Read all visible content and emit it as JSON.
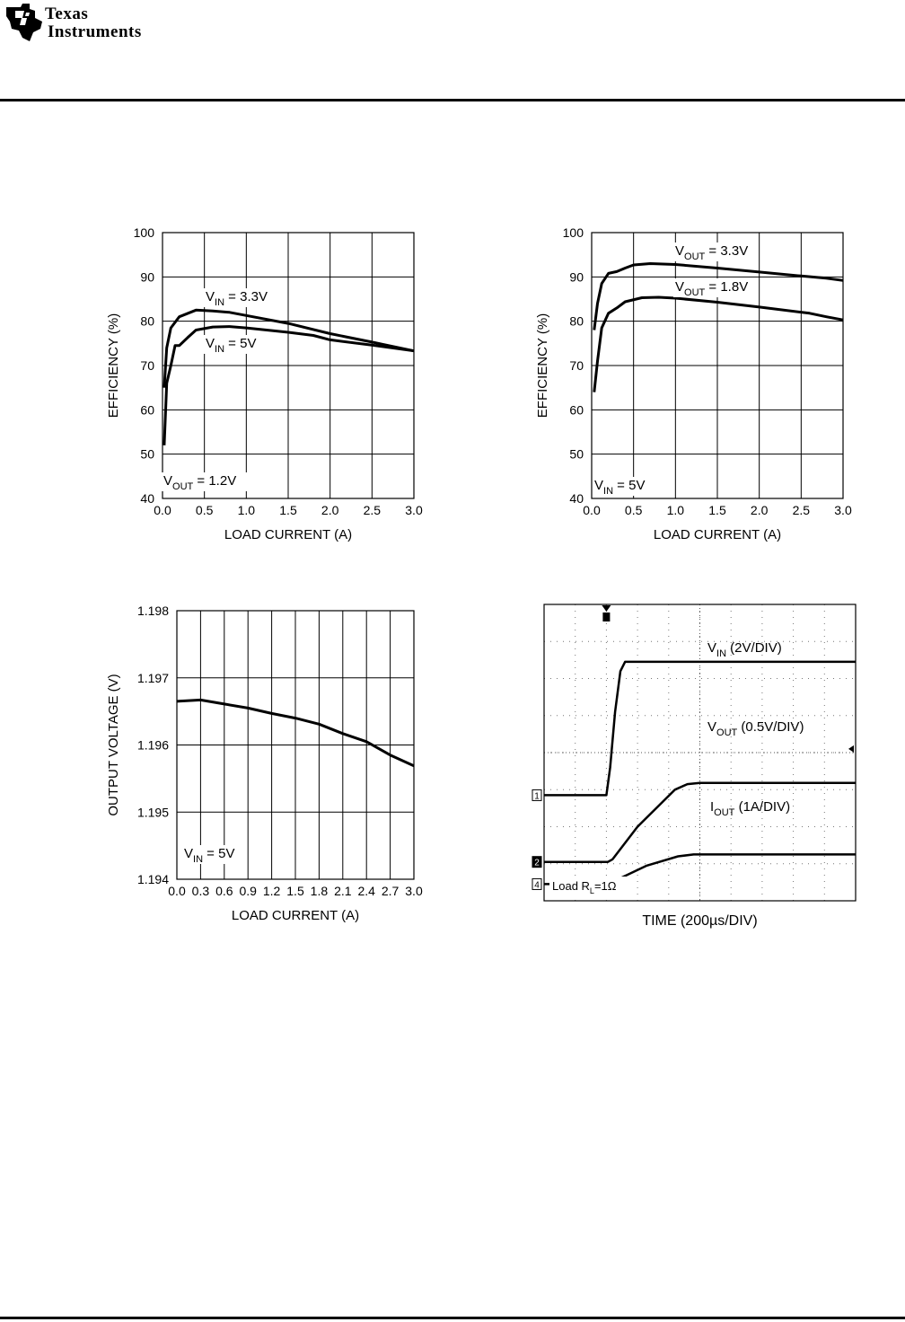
{
  "header": {
    "logo_line1": "Texas",
    "logo_line2": "Instruments"
  },
  "chart_data": [
    {
      "type": "line",
      "xlabel": "LOAD CURRENT (A)",
      "ylabel": "EFFICIENCY (%)",
      "xlim": [
        0,
        3
      ],
      "ylim": [
        40,
        100
      ],
      "xticks": [
        "0.0",
        "0.5",
        "1.0",
        "1.5",
        "2.0",
        "2.5",
        "3.0"
      ],
      "yticks": [
        "40",
        "50",
        "60",
        "70",
        "80",
        "90",
        "100"
      ],
      "grid": true,
      "annotations": [
        {
          "base": "V",
          "sub": "IN",
          "rest": " = 3.3V"
        },
        {
          "base": "V",
          "sub": "IN",
          "rest": " = 5V"
        },
        {
          "base": "V",
          "sub": "OUT",
          "rest": " = 1.2V"
        }
      ],
      "series": [
        {
          "name": "VIN = 3.3V",
          "x": [
            0.02,
            0.05,
            0.1,
            0.2,
            0.4,
            0.6,
            0.8,
            1.0,
            1.5,
            2.0,
            2.5,
            3.0
          ],
          "y": [
            65,
            74,
            78.5,
            81,
            82.5,
            82.3,
            82,
            81.3,
            79.5,
            77.2,
            75.3,
            73.3
          ]
        },
        {
          "name": "VIN = 5V",
          "x": [
            0.02,
            0.05,
            0.1,
            0.15,
            0.2,
            0.3,
            0.4,
            0.6,
            0.8,
            1.0,
            1.5,
            1.8,
            2.0,
            2.5,
            3.0
          ],
          "y": [
            52,
            66,
            70,
            74.5,
            74.5,
            76.3,
            78,
            78.7,
            78.8,
            78.5,
            77.5,
            76.8,
            75.8,
            74.6,
            73.3
          ]
        }
      ]
    },
    {
      "type": "line",
      "xlabel": "LOAD CURRENT (A)",
      "ylabel": "EFFICIENCY (%)",
      "xlim": [
        0,
        3
      ],
      "ylim": [
        40,
        100
      ],
      "xticks": [
        "0.0",
        "0.5",
        "1.0",
        "1.5",
        "2.0",
        "2.5",
        "3.0"
      ],
      "yticks": [
        "40",
        "50",
        "60",
        "70",
        "80",
        "90",
        "100"
      ],
      "grid": true,
      "annotations": [
        {
          "base": "V",
          "sub": "OUT",
          "rest": " = 3.3V"
        },
        {
          "base": "V",
          "sub": "OUT",
          "rest": " = 1.8V"
        },
        {
          "base": "V",
          "sub": "IN",
          "rest": " = 5V"
        }
      ],
      "series": [
        {
          "name": "VOUT = 3.3V",
          "x": [
            0.03,
            0.07,
            0.12,
            0.2,
            0.3,
            0.4,
            0.5,
            0.7,
            1.0,
            1.5,
            2.0,
            2.5,
            2.8,
            3.0
          ],
          "y": [
            78,
            84,
            88.5,
            90.8,
            91.2,
            92,
            92.7,
            93,
            92.8,
            92,
            91.1,
            90.2,
            89.7,
            89.2
          ]
        },
        {
          "name": "VOUT = 1.8V",
          "x": [
            0.03,
            0.07,
            0.12,
            0.2,
            0.3,
            0.4,
            0.6,
            0.8,
            1.0,
            1.5,
            2.0,
            2.6,
            2.8,
            3.0
          ],
          "y": [
            64,
            71,
            78.5,
            81.8,
            83,
            84.4,
            85.3,
            85.4,
            85.2,
            84.3,
            83.2,
            81.8,
            81,
            80.3
          ]
        }
      ]
    },
    {
      "type": "line",
      "xlabel": "LOAD CURRENT (A)",
      "ylabel": "OUTPUT VOLTAGE (V)",
      "xlim": [
        0,
        3
      ],
      "ylim": [
        1.194,
        1.198
      ],
      "xticks": [
        "0.0",
        "0.3",
        "0.6",
        "0.9",
        "1.2",
        "1.5",
        "1.8",
        "2.1",
        "2.4",
        "2.7",
        "3.0"
      ],
      "yticks": [
        "1.194",
        "1.195",
        "1.196",
        "1.197",
        "1.198"
      ],
      "grid": true,
      "annotations": [
        {
          "base": "V",
          "sub": "IN",
          "rest": " = 5V"
        }
      ],
      "series": [
        {
          "name": "VIN = 5V",
          "x": [
            0.0,
            0.3,
            0.6,
            0.9,
            1.2,
            1.5,
            1.8,
            2.1,
            2.4,
            2.7,
            3.0
          ],
          "y": [
            1.19665,
            1.19667,
            1.19661,
            1.19655,
            1.19647,
            1.1964,
            1.19631,
            1.19617,
            1.19605,
            1.19585,
            1.19569
          ]
        }
      ]
    },
    {
      "type": "line",
      "xlabel": "TIME (200µs/DIV)",
      "xlim": [
        0,
        10
      ],
      "ylim": [
        0,
        8
      ],
      "grid": "dotted",
      "annotations": [
        {
          "base": "V",
          "sub": "IN",
          "rest": " (2V/DIV)"
        },
        {
          "base": "V",
          "sub": "OUT",
          "rest": " (0.5V/DIV)"
        },
        {
          "base": "I",
          "sub": "OUT",
          "rest": " (1A/DIV)"
        },
        {
          "base": "Load R",
          "sub": "L",
          "rest": "=1Ω"
        }
      ],
      "channel_markers": [
        "1",
        "2",
        "4"
      ],
      "series": [
        {
          "name": "VIN",
          "x": [
            0,
            2.0,
            2.12,
            2.28,
            2.45,
            2.6,
            10
          ],
          "y": [
            2.85,
            2.85,
            3.6,
            5.1,
            6.2,
            6.45,
            6.45
          ]
        },
        {
          "name": "VOUT",
          "x": [
            0,
            2.05,
            2.2,
            3.0,
            4.2,
            4.6,
            5.0,
            10
          ],
          "y": [
            1.05,
            1.05,
            1.12,
            2.0,
            3.0,
            3.15,
            3.18,
            3.18
          ]
        },
        {
          "name": "IOUT",
          "x": [
            0,
            1.9,
            2.3,
            3.3,
            4.3,
            4.8,
            10
          ],
          "y": [
            0.45,
            0.45,
            0.55,
            0.95,
            1.2,
            1.25,
            1.25
          ]
        }
      ]
    }
  ]
}
